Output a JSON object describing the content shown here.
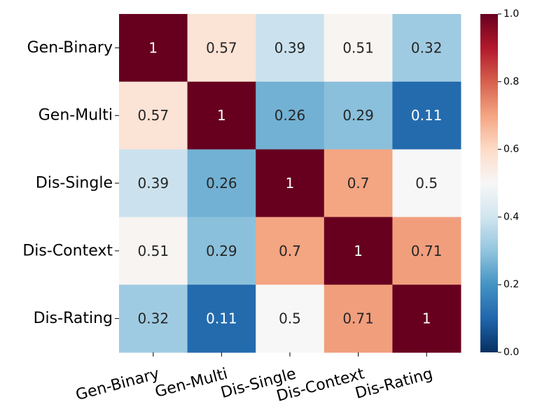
{
  "chart_data": {
    "type": "heatmap",
    "labels": [
      "Gen-Binary",
      "Gen-Multi",
      "Dis-Single",
      "Dis-Context",
      "Dis-Rating"
    ],
    "matrix": [
      [
        1,
        0.57,
        0.39,
        0.51,
        0.32
      ],
      [
        0.57,
        1,
        0.26,
        0.29,
        0.11
      ],
      [
        0.39,
        0.26,
        1,
        0.7,
        0.5
      ],
      [
        0.51,
        0.29,
        0.7,
        1,
        0.71
      ],
      [
        0.32,
        0.11,
        0.5,
        0.71,
        1
      ]
    ],
    "cell_text": [
      [
        "1",
        "0.57",
        "0.39",
        "0.51",
        "0.32"
      ],
      [
        "0.57",
        "1",
        "0.26",
        "0.29",
        "0.11"
      ],
      [
        "0.39",
        "0.26",
        "1",
        "0.7",
        "0.5"
      ],
      [
        "0.51",
        "0.29",
        "0.7",
        "1",
        "0.71"
      ],
      [
        "0.32",
        "0.11",
        "0.5",
        "0.71",
        "1"
      ]
    ],
    "colorbar": {
      "range": [
        0,
        1
      ],
      "ticks": [
        "0.0",
        "0.2",
        "0.4",
        "0.6",
        "0.8",
        "1.0"
      ],
      "colormap": "RdBu_r",
      "placement": "right"
    },
    "title": "",
    "xlabel": "",
    "ylabel": "",
    "grid": false
  }
}
